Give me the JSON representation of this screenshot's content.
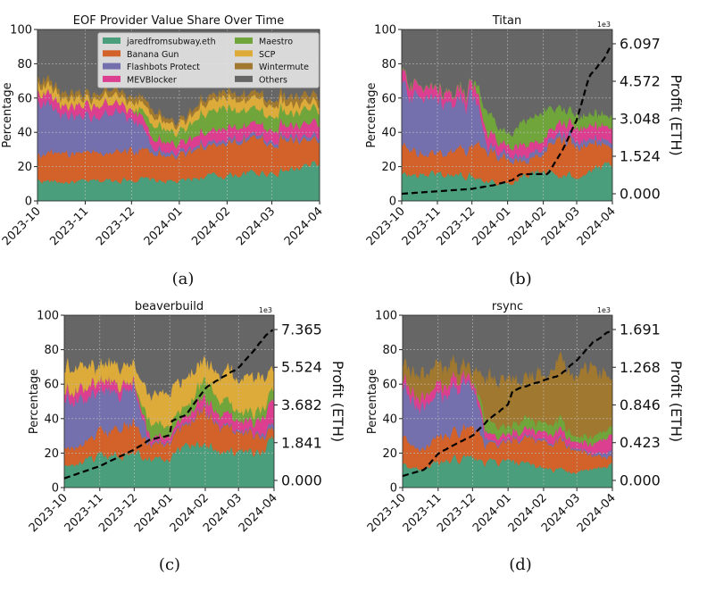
{
  "legend": {
    "entries": [
      "jaredfromsubway.eth",
      "Banana Gun",
      "Flashbots Protect",
      "MEVBlocker",
      "Maestro",
      "SCP",
      "Wintermute",
      "Others"
    ],
    "colors": [
      "#4a9e7b",
      "#d2622a",
      "#7470ad",
      "#dc3f8f",
      "#6fa53a",
      "#ddab3a",
      "#a07830",
      "#666666"
    ]
  },
  "chart_data": [
    {
      "type": "area",
      "stacked": true,
      "title": "EOF Provider Value Share Over Time",
      "ylabel": "Percentage",
      "ylim": [
        0,
        100
      ],
      "yticks": [
        "0",
        "20",
        "40",
        "60",
        "80",
        "100"
      ],
      "xticks": [
        "2023-10",
        "2023-11",
        "2023-12",
        "2024-01",
        "2024-02",
        "2024-03",
        "2024-04"
      ],
      "x": [
        "2023-10-01",
        "2023-10-15",
        "2023-11-01",
        "2023-11-15",
        "2023-12-01",
        "2023-12-15",
        "2024-01-01",
        "2024-01-15",
        "2024-02-01",
        "2024-02-15",
        "2024-03-01",
        "2024-03-15",
        "2024-04-01"
      ],
      "grid": true,
      "legend_position": "top-right",
      "caption": "(a)",
      "series": [
        {
          "name": "jaredfromsubway.eth",
          "values": [
            12,
            11,
            11,
            12,
            13,
            12,
            11,
            14,
            15,
            16,
            17,
            18,
            22
          ]
        },
        {
          "name": "Banana Gun",
          "values": [
            15,
            16,
            16,
            17,
            18,
            16,
            14,
            18,
            20,
            20,
            18,
            17,
            12
          ]
        },
        {
          "name": "Flashbots Protect",
          "values": [
            30,
            22,
            22,
            22,
            20,
            3,
            2,
            2,
            2,
            2,
            2,
            2,
            2
          ]
        },
        {
          "name": "MEVBlocker",
          "values": [
            6,
            6,
            6,
            6,
            5,
            6,
            5,
            6,
            7,
            6,
            6,
            7,
            8
          ]
        },
        {
          "name": "Maestro",
          "values": [
            0,
            0,
            0,
            0,
            0,
            8,
            7,
            10,
            12,
            9,
            8,
            8,
            8
          ]
        },
        {
          "name": "SCP",
          "values": [
            5,
            5,
            4,
            5,
            4,
            5,
            4,
            5,
            6,
            6,
            6,
            5,
            4
          ]
        },
        {
          "name": "Wintermute",
          "values": [
            3,
            3,
            3,
            3,
            3,
            3,
            2,
            3,
            3,
            3,
            3,
            4,
            4
          ]
        }
      ]
    },
    {
      "type": "area",
      "stacked": true,
      "title": "Titan",
      "ylabel": "Percentage",
      "y2label": "Profit (ETH)",
      "y2_multiplier": "1e3",
      "ylim": [
        0,
        100
      ],
      "y2lim": [
        0,
        6.097
      ],
      "yticks": [
        "0",
        "20",
        "40",
        "60",
        "80",
        "100"
      ],
      "y2ticks": [
        "0.000",
        "1.524",
        "3.048",
        "4.572",
        "6.097"
      ],
      "xticks": [
        "2023-10",
        "2023-11",
        "2023-12",
        "2024-01",
        "2024-02",
        "2024-03",
        "2024-04"
      ],
      "x": [
        "2023-10-01",
        "2023-10-15",
        "2023-11-01",
        "2023-11-15",
        "2023-12-01",
        "2023-12-15",
        "2024-01-01",
        "2024-01-15",
        "2024-02-01",
        "2024-02-15",
        "2024-03-01",
        "2024-03-15",
        "2024-04-01"
      ],
      "grid": true,
      "caption": "(b)",
      "series": [
        {
          "name": "jaredfromsubway.eth",
          "values": [
            15,
            15,
            16,
            15,
            15,
            12,
            10,
            15,
            18,
            14,
            15,
            18,
            20
          ]
        },
        {
          "name": "Banana Gun",
          "values": [
            15,
            13,
            12,
            14,
            18,
            18,
            15,
            8,
            10,
            22,
            20,
            15,
            10
          ]
        },
        {
          "name": "Flashbots Protect",
          "values": [
            38,
            30,
            30,
            28,
            30,
            3,
            3,
            3,
            3,
            3,
            3,
            3,
            3
          ]
        },
        {
          "name": "MEVBlocker",
          "values": [
            7,
            6,
            6,
            6,
            6,
            7,
            5,
            7,
            5,
            6,
            8,
            7,
            8
          ]
        },
        {
          "name": "Maestro",
          "values": [
            0,
            0,
            0,
            0,
            0,
            12,
            6,
            14,
            16,
            8,
            7,
            6,
            7
          ]
        },
        {
          "name": "SCP",
          "values": [
            0,
            0,
            0,
            0,
            0,
            0,
            0,
            0,
            0,
            0,
            0,
            0,
            0
          ]
        },
        {
          "name": "Wintermute",
          "values": [
            0,
            0,
            0,
            0,
            0,
            0,
            0,
            0,
            0,
            0,
            0,
            0,
            0
          ]
        }
      ],
      "profit": [
        [
          "2023-10-01",
          0.0
        ],
        [
          "2023-11-01",
          0.1
        ],
        [
          "2023-12-01",
          0.2
        ],
        [
          "2023-12-20",
          0.35
        ],
        [
          "2024-01-05",
          0.55
        ],
        [
          "2024-01-12",
          0.8
        ],
        [
          "2024-02-05",
          0.8
        ],
        [
          "2024-02-18",
          1.8
        ],
        [
          "2024-03-01",
          3.0
        ],
        [
          "2024-03-12",
          4.8
        ],
        [
          "2024-03-25",
          5.5
        ],
        [
          "2024-04-01",
          6.097
        ]
      ]
    },
    {
      "type": "area",
      "stacked": true,
      "title": "beaverbuild",
      "ylabel": "Percentage",
      "y2label": "Profit (ETH)",
      "y2_multiplier": "1e3",
      "ylim": [
        0,
        100
      ],
      "y2lim": [
        0,
        7.365
      ],
      "yticks": [
        "0",
        "20",
        "40",
        "60",
        "80",
        "100"
      ],
      "y2ticks": [
        "0.000",
        "1.841",
        "3.682",
        "5.524",
        "7.365"
      ],
      "xticks": [
        "2023-10",
        "2023-11",
        "2023-12",
        "2024-01",
        "2024-02",
        "2024-03",
        "2024-04"
      ],
      "x": [
        "2023-10-01",
        "2023-10-15",
        "2023-11-01",
        "2023-11-15",
        "2023-12-01",
        "2023-12-15",
        "2024-01-01",
        "2024-01-15",
        "2024-02-01",
        "2024-02-15",
        "2024-03-01",
        "2024-03-15",
        "2024-04-01"
      ],
      "grid": true,
      "caption": "(c)",
      "series": [
        {
          "name": "jaredfromsubway.eth",
          "values": [
            12,
            14,
            17,
            19,
            20,
            18,
            15,
            26,
            25,
            22,
            20,
            19,
            28
          ]
        },
        {
          "name": "Banana Gun",
          "values": [
            12,
            10,
            14,
            16,
            18,
            8,
            10,
            12,
            20,
            14,
            12,
            10,
            5
          ]
        },
        {
          "name": "Flashbots Protect",
          "values": [
            28,
            26,
            24,
            22,
            20,
            1,
            1,
            1,
            1,
            1,
            1,
            1,
            3
          ]
        },
        {
          "name": "MEVBlocker",
          "values": [
            5,
            6,
            6,
            6,
            3,
            3,
            3,
            4,
            6,
            6,
            6,
            6,
            14
          ]
        },
        {
          "name": "Maestro",
          "values": [
            0,
            0,
            0,
            0,
            0,
            8,
            5,
            6,
            10,
            8,
            5,
            5,
            6
          ]
        },
        {
          "name": "SCP",
          "values": [
            14,
            13,
            8,
            10,
            9,
            16,
            20,
            15,
            10,
            15,
            20,
            22,
            10
          ]
        },
        {
          "name": "Wintermute",
          "values": [
            0,
            0,
            0,
            0,
            0,
            0,
            0,
            0,
            0,
            0,
            0,
            0,
            0
          ]
        }
      ],
      "profit": [
        [
          "2023-10-01",
          0.1
        ],
        [
          "2023-11-01",
          0.7
        ],
        [
          "2023-12-01",
          1.5
        ],
        [
          "2023-12-15",
          2.0
        ],
        [
          "2024-01-01",
          2.2
        ],
        [
          "2024-01-03",
          2.9
        ],
        [
          "2024-01-15",
          3.2
        ],
        [
          "2024-02-01",
          4.5
        ],
        [
          "2024-02-15",
          5.0
        ],
        [
          "2024-03-01",
          5.5
        ],
        [
          "2024-03-15",
          6.4
        ],
        [
          "2024-03-25",
          7.1
        ],
        [
          "2024-04-01",
          7.365
        ]
      ]
    },
    {
      "type": "area",
      "stacked": true,
      "title": "rsync",
      "ylabel": "Percentage",
      "y2label": "Profit (ETH)",
      "y2_multiplier": "1e3",
      "ylim": [
        0,
        100
      ],
      "y2lim": [
        0,
        1.691
      ],
      "yticks": [
        "0",
        "20",
        "40",
        "60",
        "80",
        "100"
      ],
      "y2ticks": [
        "0.000",
        "0.423",
        "0.846",
        "1.268",
        "1.691"
      ],
      "xticks": [
        "2023-10",
        "2023-11",
        "2023-12",
        "2024-01",
        "2024-02",
        "2024-03",
        "2024-04"
      ],
      "x": [
        "2023-10-01",
        "2023-10-15",
        "2023-11-01",
        "2023-11-15",
        "2023-12-01",
        "2023-12-15",
        "2024-01-01",
        "2024-01-15",
        "2024-02-01",
        "2024-02-15",
        "2024-03-01",
        "2024-03-15",
        "2024-04-01"
      ],
      "grid": true,
      "caption": "(d)",
      "series": [
        {
          "name": "jaredfromsubway.eth",
          "values": [
            13,
            11,
            14,
            16,
            17,
            14,
            15,
            13,
            12,
            10,
            9,
            10,
            14
          ]
        },
        {
          "name": "Banana Gun",
          "values": [
            15,
            12,
            14,
            16,
            18,
            10,
            10,
            15,
            14,
            16,
            13,
            8,
            5
          ]
        },
        {
          "name": "Flashbots Protect",
          "values": [
            30,
            26,
            25,
            26,
            25,
            1,
            1,
            1,
            1,
            1,
            1,
            1,
            3
          ]
        },
        {
          "name": "MEVBlocker",
          "values": [
            5,
            6,
            6,
            6,
            3,
            4,
            3,
            4,
            5,
            5,
            4,
            5,
            10
          ]
        },
        {
          "name": "Maestro",
          "values": [
            0,
            0,
            0,
            0,
            0,
            8,
            4,
            7,
            5,
            7,
            3,
            4,
            5
          ]
        },
        {
          "name": "SCP",
          "values": [
            0,
            0,
            0,
            0,
            0,
            0,
            0,
            0,
            0,
            0,
            0,
            0,
            0
          ]
        },
        {
          "name": "Wintermute",
          "values": [
            8,
            13,
            12,
            8,
            5,
            25,
            28,
            22,
            28,
            30,
            35,
            40,
            24
          ]
        }
      ],
      "profit": [
        [
          "2023-10-01",
          0.05
        ],
        [
          "2023-10-20",
          0.12
        ],
        [
          "2023-11-01",
          0.3
        ],
        [
          "2023-11-15",
          0.4
        ],
        [
          "2023-12-01",
          0.5
        ],
        [
          "2023-12-15",
          0.68
        ],
        [
          "2024-01-01",
          0.85
        ],
        [
          "2024-01-05",
          1.0
        ],
        [
          "2024-01-15",
          1.05
        ],
        [
          "2024-02-01",
          1.12
        ],
        [
          "2024-02-15",
          1.18
        ],
        [
          "2024-03-01",
          1.35
        ],
        [
          "2024-03-15",
          1.55
        ],
        [
          "2024-04-01",
          1.691
        ]
      ]
    }
  ]
}
